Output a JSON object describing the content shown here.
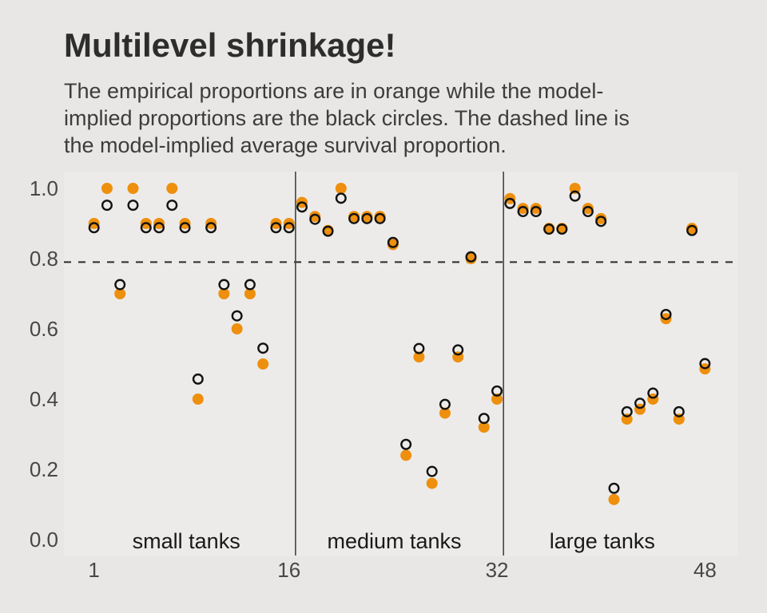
{
  "title": "Multilevel shrinkage!",
  "subtitle_lines": [
    "The empirical proportions are in orange while the model-",
    "implied proportions are the black circles. The dashed line is",
    "the model-implied average survival proportion."
  ],
  "colors": {
    "page_bg": "#e8e7e5",
    "panel_bg": "#ecebe9",
    "orange": "#EE8F0D",
    "black_circle": "#121212",
    "dashed_line": "#2b2b2b",
    "divider": "#454545",
    "axis_text": "#474747",
    "section_text": "#191919"
  },
  "chart_data": {
    "type": "scatter",
    "title": "Multilevel shrinkage!",
    "x_axis_label": "",
    "y_axis_label": "",
    "x_range": [
      1,
      48
    ],
    "y_range": [
      0.0,
      1.0
    ],
    "grid": false,
    "dashed_line_value": 0.79,
    "dividers_x": [
      16.5,
      32.5
    ],
    "x_ticks": [
      {
        "label": "1",
        "value": 1
      },
      {
        "label": "16",
        "value": 16
      },
      {
        "label": "32",
        "value": 32
      },
      {
        "label": "48",
        "value": 48
      }
    ],
    "y_ticks": [
      {
        "label": "1.0",
        "value": 1.0
      },
      {
        "label": "0.8",
        "value": 0.8
      },
      {
        "label": "0.6",
        "value": 0.6
      },
      {
        "label": "0.4",
        "value": 0.4
      },
      {
        "label": "0.2",
        "value": 0.2
      },
      {
        "label": "0.0",
        "value": 0.0
      }
    ],
    "sections": [
      {
        "label": "small tanks",
        "center_x": 8.1
      },
      {
        "label": "medium tanks",
        "center_x": 24.1
      },
      {
        "label": "large tanks",
        "center_x": 40.1
      }
    ],
    "x": [
      1,
      2,
      3,
      4,
      5,
      6,
      7,
      8,
      9,
      10,
      11,
      12,
      13,
      14,
      15,
      16,
      17,
      18,
      19,
      20,
      21,
      22,
      23,
      24,
      25,
      26,
      27,
      28,
      29,
      30,
      31,
      32,
      33,
      34,
      35,
      36,
      37,
      38,
      39,
      40,
      41,
      42,
      43,
      44,
      45,
      46,
      47,
      48
    ],
    "series": [
      {
        "name": "empirical proportion",
        "marker": "filled-circle",
        "color": "#EE8F0D",
        "values": [
          0.9,
          1.0,
          0.7,
          1.0,
          0.9,
          0.9,
          1.0,
          0.9,
          0.4,
          0.9,
          0.7,
          0.6,
          0.7,
          0.5,
          0.9,
          0.9,
          0.96,
          0.92,
          0.88,
          1.0,
          0.92,
          0.92,
          0.92,
          0.84,
          0.24,
          0.52,
          0.16,
          0.36,
          0.52,
          0.8,
          0.32,
          0.4,
          0.971,
          0.943,
          0.943,
          0.886,
          0.886,
          1.0,
          0.943,
          0.914,
          0.114,
          0.343,
          0.371,
          0.4,
          0.629,
          0.343,
          0.886,
          0.486
        ]
      },
      {
        "name": "model-implied proportion",
        "marker": "open-circle",
        "color": "#121212",
        "values": [
          0.888,
          0.952,
          0.726,
          0.952,
          0.888,
          0.888,
          0.952,
          0.888,
          0.457,
          0.888,
          0.726,
          0.637,
          0.726,
          0.545,
          0.888,
          0.888,
          0.947,
          0.912,
          0.878,
          0.972,
          0.914,
          0.914,
          0.914,
          0.846,
          0.271,
          0.544,
          0.194,
          0.385,
          0.54,
          0.805,
          0.345,
          0.423,
          0.957,
          0.934,
          0.934,
          0.884,
          0.884,
          0.978,
          0.934,
          0.906,
          0.146,
          0.364,
          0.388,
          0.417,
          0.641,
          0.364,
          0.88,
          0.501
        ]
      }
    ]
  }
}
